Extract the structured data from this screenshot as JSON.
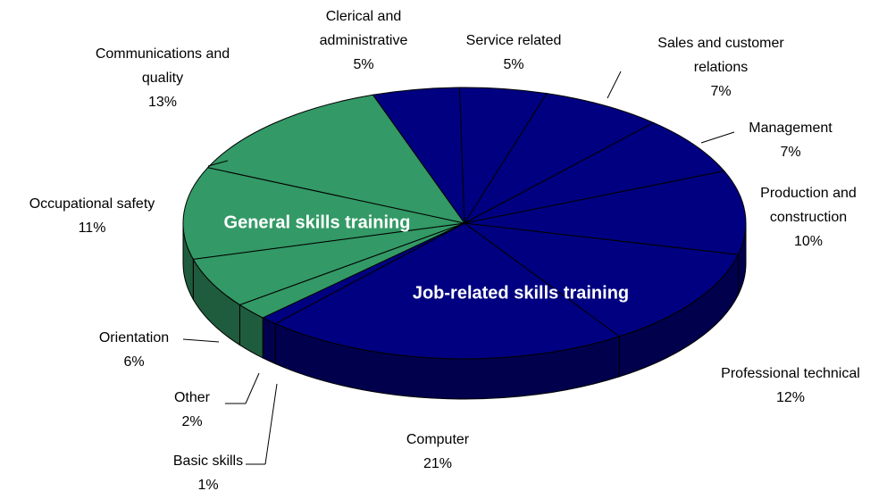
{
  "chart_data": {
    "type": "pie3d",
    "categories": [
      "Clerical and administrative",
      "Service related",
      "Sales and customer relations",
      "Management",
      "Production and construction",
      "Professional technical",
      "Computer",
      "Basic skills",
      "Other",
      "Orientation",
      "Occupational safety",
      "Communications and quality"
    ],
    "values": [
      5,
      5,
      7,
      7,
      10,
      12,
      21,
      1,
      2,
      6,
      11,
      13
    ],
    "value_labels": [
      "5%",
      "5%",
      "7%",
      "7%",
      "10%",
      "12%",
      "21%",
      "1%",
      "2%",
      "6%",
      "11%",
      "13%"
    ],
    "colors": [
      "#000080",
      "#000080",
      "#000080",
      "#000080",
      "#000080",
      "#000080",
      "#000080",
      "#000080",
      "#339966",
      "#339966",
      "#339966",
      "#339966"
    ],
    "group_labels": [
      "General skills training",
      "Job-related skills training"
    ]
  }
}
